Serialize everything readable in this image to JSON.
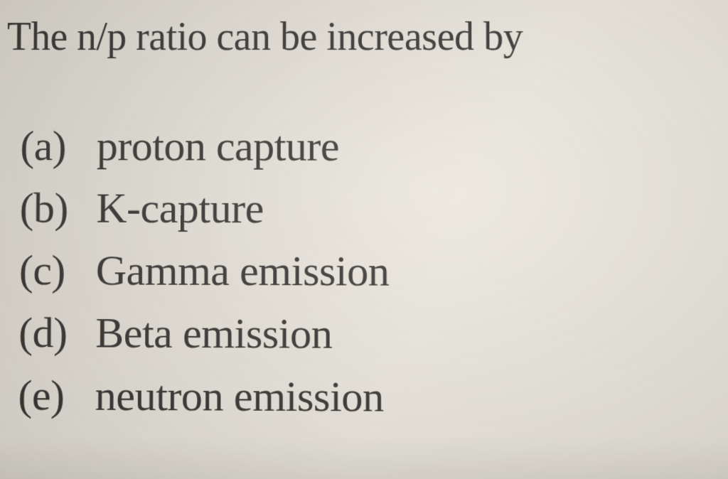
{
  "document": {
    "type": "multiple-choice-question",
    "background_color": "#e2ded4",
    "text_color": "#353330",
    "font_family": "Times New Roman",
    "question": {
      "text": "The n/p ratio can be increased by",
      "fontsize_pt": 42
    },
    "options": [
      {
        "label": "(a)",
        "text": "proton capture"
      },
      {
        "label": "(b)",
        "text": "K-capture"
      },
      {
        "label": "(c)",
        "text": "Gamma emission"
      },
      {
        "label": "(d)",
        "text": "Beta emission"
      },
      {
        "label": "(e)",
        "text": "neutron emission"
      }
    ],
    "option_fontsize_pt": 45,
    "option_line_height": 1.45
  }
}
